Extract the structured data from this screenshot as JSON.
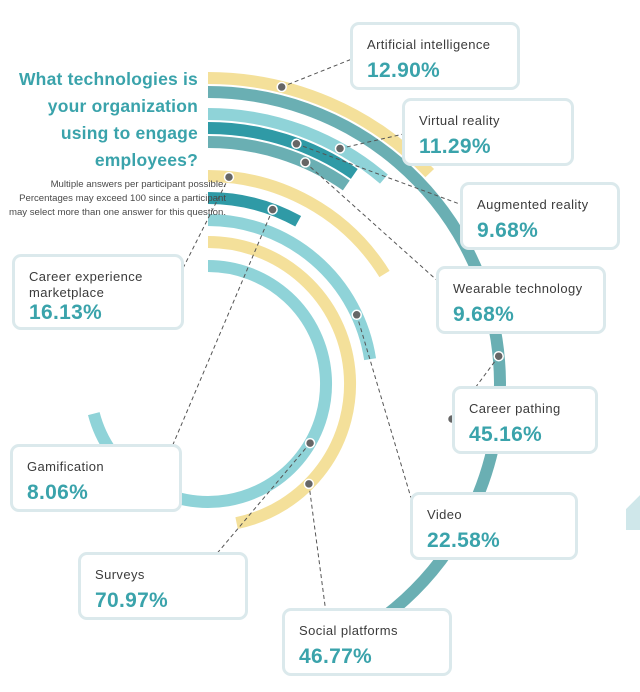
{
  "title": "What technologies is your organization using to engage employees?",
  "note": "Multiple answers per participant possible. Percentages may exceed 100 since a participant may select more than one answer for this question.",
  "colors": {
    "teal_dark": "#6aafb3",
    "teal_light": "#8fd3d8",
    "teal_deep": "#2f9aa6",
    "yellow": "#f4e09a",
    "accent_text": "#3aa3ab"
  },
  "chart_data": {
    "type": "radial bar",
    "unit": "%",
    "categories": [
      "Artificial intelligence",
      "Virtual reality",
      "Augmented reality",
      "Wearable technology",
      "Career pathing",
      "Career experience marketplace",
      "Gamification",
      "Video",
      "Social platforms",
      "Surveys"
    ],
    "values": [
      12.9,
      11.29,
      9.68,
      9.68,
      45.16,
      16.13,
      8.06,
      22.58,
      46.77,
      70.97
    ],
    "labels": [
      "Artificial intelligence",
      "Virtual reality",
      "Augmented reality",
      "Wearable technology",
      "Career pathing",
      "Career experience marketplace",
      "Gamification",
      "Video",
      "Social platforms",
      "Surveys"
    ],
    "value_labels": [
      "12.90%",
      "11.29%",
      "9.68%",
      "9.68%",
      "45.16%",
      "16.13%",
      "8.06%",
      "22.58%",
      "46.77%",
      "70.97%"
    ]
  }
}
